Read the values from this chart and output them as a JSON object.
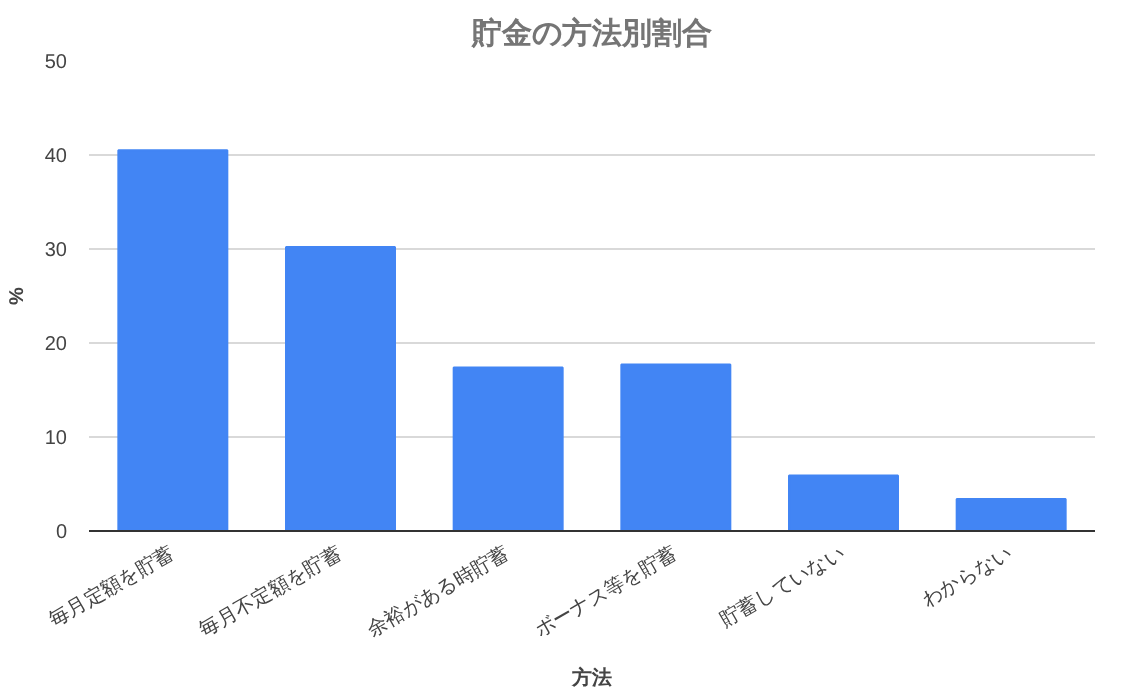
{
  "chart_data": {
    "type": "bar",
    "title": "貯金の方法別割合",
    "xlabel": "方法",
    "ylabel": "%",
    "categories": [
      "毎月定額を貯蓄",
      "毎月不定額を貯蓄",
      "余裕がある時貯蓄",
      "ボーナス等を貯蓄",
      "貯蓄していない",
      "わからない"
    ],
    "values": [
      40.5,
      30.2,
      17.4,
      17.7,
      5.9,
      3.4
    ],
    "color": "#4285f4",
    "ylim": [
      0,
      50
    ],
    "yticks": [
      0,
      10,
      20,
      30,
      40,
      50
    ],
    "grid": "y"
  }
}
